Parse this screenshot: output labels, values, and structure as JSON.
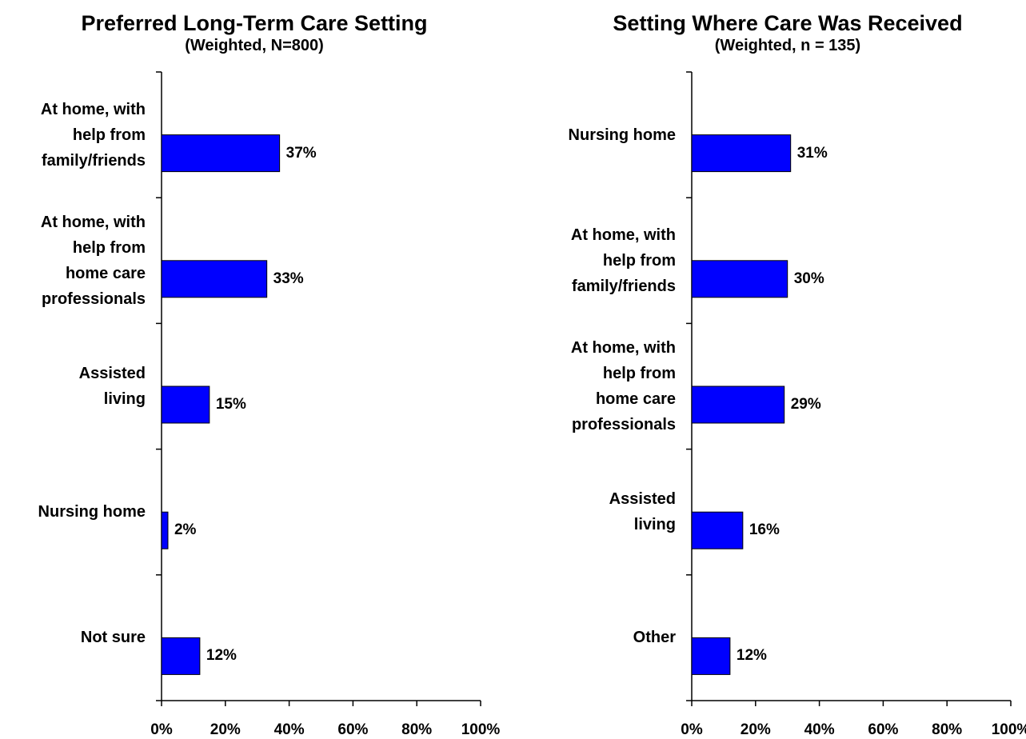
{
  "chart_data": [
    {
      "type": "bar",
      "orientation": "horizontal",
      "title": "Preferred Long-Term Care Setting",
      "subtitle": "(Weighted, N=800)",
      "categories": [
        "At home, with\nhelp from\nfamily/friends",
        "At home, with\nhelp from\nhome care\nprofessionals",
        "Assisted\nliving",
        "Nursing home",
        "Not sure"
      ],
      "values": [
        37,
        33,
        15,
        2,
        12
      ],
      "value_labels": [
        "37%",
        "33%",
        "15%",
        "2%",
        "12%"
      ],
      "color": "#0000ff",
      "xlim": [
        0,
        100
      ],
      "xticks": [
        {
          "value": 0,
          "label": "0%"
        },
        {
          "value": 20,
          "label": "20%"
        },
        {
          "value": 40,
          "label": "40%"
        },
        {
          "value": 60,
          "label": "60%"
        },
        {
          "value": 80,
          "label": "80%"
        },
        {
          "value": 100,
          "label": "100%"
        }
      ]
    },
    {
      "type": "bar",
      "orientation": "horizontal",
      "title": "Setting Where Care Was Received",
      "subtitle": "(Weighted, n = 135)",
      "categories": [
        "Nursing home",
        "At home, with\nhelp from\nfamily/friends",
        "At home, with\nhelp from\nhome care\nprofessionals",
        "Assisted\nliving",
        "Other"
      ],
      "values": [
        31,
        30,
        29,
        16,
        12
      ],
      "value_labels": [
        "31%",
        "30%",
        "29%",
        "16%",
        "12%"
      ],
      "color": "#0000ff",
      "xlim": [
        0,
        100
      ],
      "xticks": [
        {
          "value": 0,
          "label": "0%"
        },
        {
          "value": 20,
          "label": "20%"
        },
        {
          "value": 40,
          "label": "40%"
        },
        {
          "value": 60,
          "label": "60%"
        },
        {
          "value": 80,
          "label": "80%"
        },
        {
          "value": 100,
          "label": "100%"
        }
      ]
    }
  ]
}
